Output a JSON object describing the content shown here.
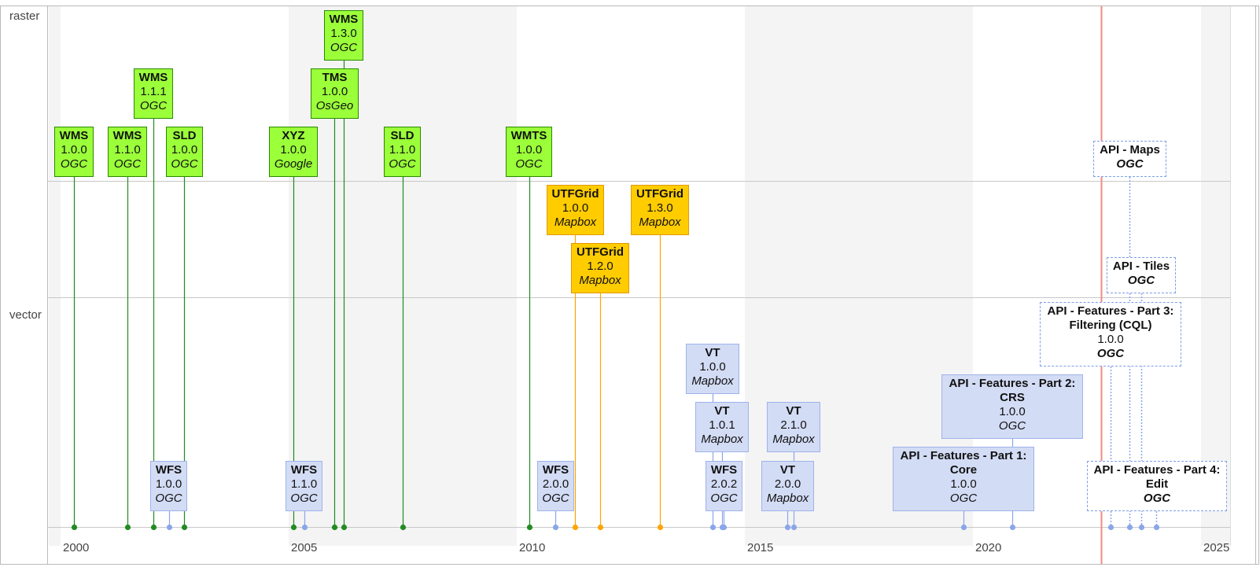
{
  "lanes": [
    {
      "id": "raster",
      "label": "raster"
    },
    {
      "id": "utfgrid",
      "label": ""
    },
    {
      "id": "vector",
      "label": "vector"
    }
  ],
  "years": [
    "2000",
    "2005",
    "2010",
    "2015",
    "2020",
    "2025"
  ],
  "items": [
    {
      "id": "wms-100",
      "title": "WMS",
      "version": "1.0.0",
      "org": "OGC",
      "year": 2000.0,
      "kind": "raster"
    },
    {
      "id": "wms-110",
      "title": "WMS",
      "version": "1.1.0",
      "org": "OGC",
      "year": 2001.15,
      "kind": "raster"
    },
    {
      "id": "wms-111",
      "title": "WMS",
      "version": "1.1.1",
      "org": "OGC",
      "year": 2001.73,
      "kind": "raster"
    },
    {
      "id": "sld-100",
      "title": "SLD",
      "version": "1.0.0",
      "org": "OGC",
      "year": 2002.4,
      "kind": "raster"
    },
    {
      "id": "xyz-100",
      "title": "XYZ",
      "version": "1.0.0",
      "org": "Google",
      "year": 2005.0,
      "kind": "raster"
    },
    {
      "id": "tms-100",
      "title": "TMS",
      "version": "1.0.0",
      "org": "OsGeo",
      "year": 2005.65,
      "kind": "raster"
    },
    {
      "id": "wms-130",
      "title": "WMS",
      "version": "1.3.0",
      "org": "OGC",
      "year": 2005.85,
      "kind": "raster"
    },
    {
      "id": "sld-110",
      "title": "SLD",
      "version": "1.1.0",
      "org": "OGC",
      "year": 2007.4,
      "kind": "raster"
    },
    {
      "id": "wmts-100",
      "title": "WMTS",
      "version": "1.0.0",
      "org": "OGC",
      "year": 2010.0,
      "kind": "raster"
    },
    {
      "id": "utf-100",
      "title": "UTFGrid",
      "version": "1.0.0",
      "org": "Mapbox",
      "year": 2010.95,
      "kind": "utf"
    },
    {
      "id": "utf-120",
      "title": "UTFGrid",
      "version": "1.2.0",
      "org": "Mapbox",
      "year": 2011.5,
      "kind": "utf"
    },
    {
      "id": "utf-130",
      "title": "UTFGrid",
      "version": "1.3.0",
      "org": "Mapbox",
      "year": 2012.8,
      "kind": "utf"
    },
    {
      "id": "wfs-100",
      "title": "WFS",
      "version": "1.0.0",
      "org": "OGC",
      "year": 2002.05,
      "kind": "vec"
    },
    {
      "id": "wfs-110",
      "title": "WFS",
      "version": "1.1.0",
      "org": "OGC",
      "year": 2005.0,
      "kind": "vec"
    },
    {
      "id": "wfs-200",
      "title": "WFS",
      "version": "2.0.0",
      "org": "OGC",
      "year": 2010.5,
      "kind": "vec"
    },
    {
      "id": "vt-100",
      "title": "VT",
      "version": "1.0.0",
      "org": "Mapbox",
      "year": 2013.95,
      "kind": "vec"
    },
    {
      "id": "vt-101",
      "title": "VT",
      "version": "1.0.1",
      "org": "Mapbox",
      "year": 2014.1,
      "kind": "vec"
    },
    {
      "id": "wfs-202",
      "title": "WFS",
      "version": "2.0.2",
      "org": "OGC",
      "year": 2014.2,
      "kind": "vec"
    },
    {
      "id": "vt-200",
      "title": "VT",
      "version": "2.0.0",
      "org": "Mapbox",
      "year": 2015.8,
      "kind": "vec"
    },
    {
      "id": "vt-210",
      "title": "VT",
      "version": "2.1.0",
      "org": "Mapbox",
      "year": 2015.95,
      "kind": "vec"
    },
    {
      "id": "apif1",
      "title": "API - Features - Part 1: Core",
      "version": "1.0.0",
      "org": "OGC",
      "year": 2019.5,
      "kind": "vec"
    },
    {
      "id": "apif2",
      "title": "API - Features - Part 2: CRS",
      "version": "1.0.0",
      "org": "OGC",
      "year": 2020.6,
      "kind": "vec"
    },
    {
      "id": "apif3",
      "title": "API - Features - Part 3: Filtering (CQL)",
      "version": "1.0.0",
      "org": "OGC",
      "year": 2023.0,
      "kind": "draft"
    },
    {
      "id": "apimaps",
      "title": "API - Maps",
      "version": "",
      "org": "OGC",
      "year": 2023.4,
      "kind": "draft"
    },
    {
      "id": "apitiles",
      "title": "API - Tiles",
      "version": "",
      "org": "OGC",
      "year": 2023.6,
      "kind": "draft"
    },
    {
      "id": "apif4",
      "title": "API - Features - Part 4: Edit",
      "version": "",
      "org": "OGC",
      "year": 2023.7,
      "kind": "draft"
    }
  ],
  "colors": {
    "raster_fill": "#9bff3a",
    "raster_line": "#228b22",
    "utf_fill": "#ffcc00",
    "utf_line": "#ffa500",
    "vec_fill": "#d3dcf5",
    "vec_line": "#9fb3ea",
    "now_marker": "#f28b82"
  }
}
